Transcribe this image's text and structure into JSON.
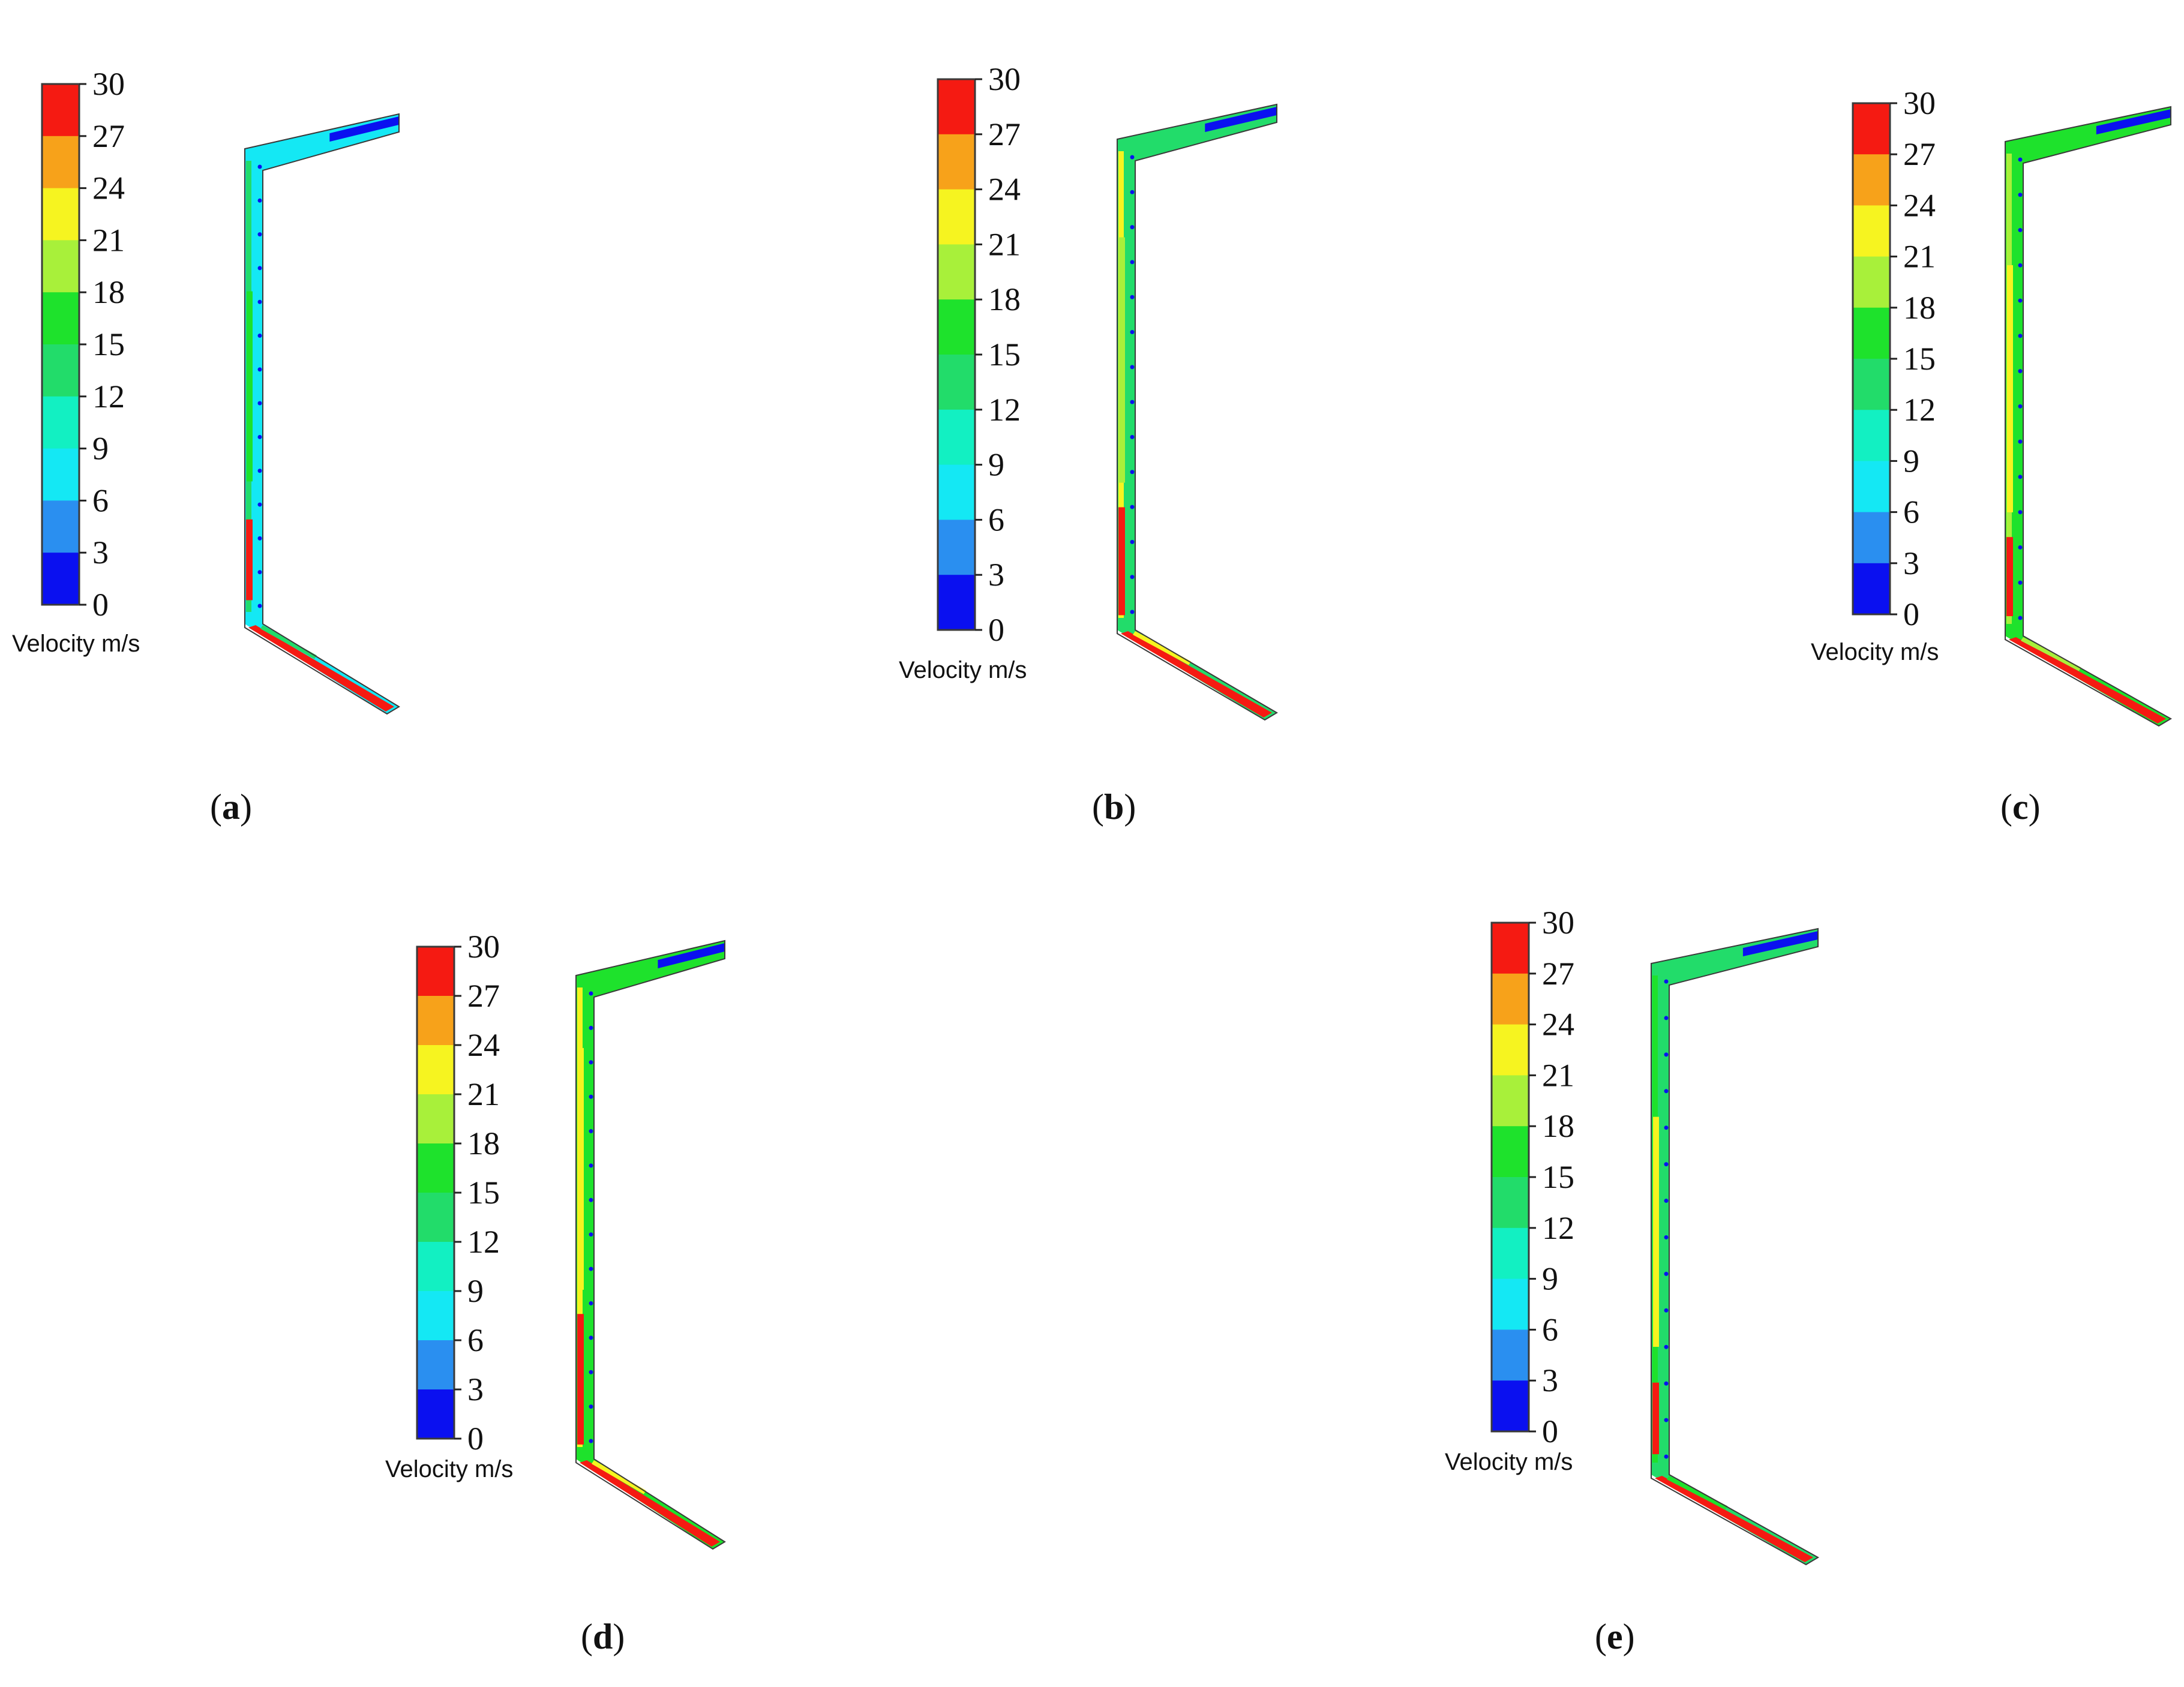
{
  "colors": {
    "band_0_3": "#0a10f0",
    "band_3_6": "#2a8ff0",
    "band_6_9": "#14e8f4",
    "band_9_12": "#12f0c2",
    "band_12_15": "#22dc6a",
    "band_15_18": "#1ee22c",
    "band_18_21": "#a8f03a",
    "band_21_24": "#f6f420",
    "band_24_27": "#f7a21a",
    "band_27_30": "#f51a12",
    "outline": "#3a3a3a"
  },
  "colorbar": {
    "ticks": [
      "30",
      "27",
      "24",
      "21",
      "18",
      "15",
      "12",
      "9",
      "6",
      "3",
      "0"
    ],
    "unit_label": "Velocity m/s"
  },
  "panels": [
    {
      "id": "a",
      "caption_open": "(",
      "caption_letter": "a",
      "caption_close": ")"
    },
    {
      "id": "b",
      "caption_open": "(",
      "caption_letter": "b",
      "caption_close": ")"
    },
    {
      "id": "c",
      "caption_open": "(",
      "caption_letter": "c",
      "caption_close": ")"
    },
    {
      "id": "d",
      "caption_open": "(",
      "caption_letter": "d",
      "caption_close": ")"
    },
    {
      "id": "e",
      "caption_open": "(",
      "caption_letter": "e",
      "caption_close": ")"
    }
  ]
}
